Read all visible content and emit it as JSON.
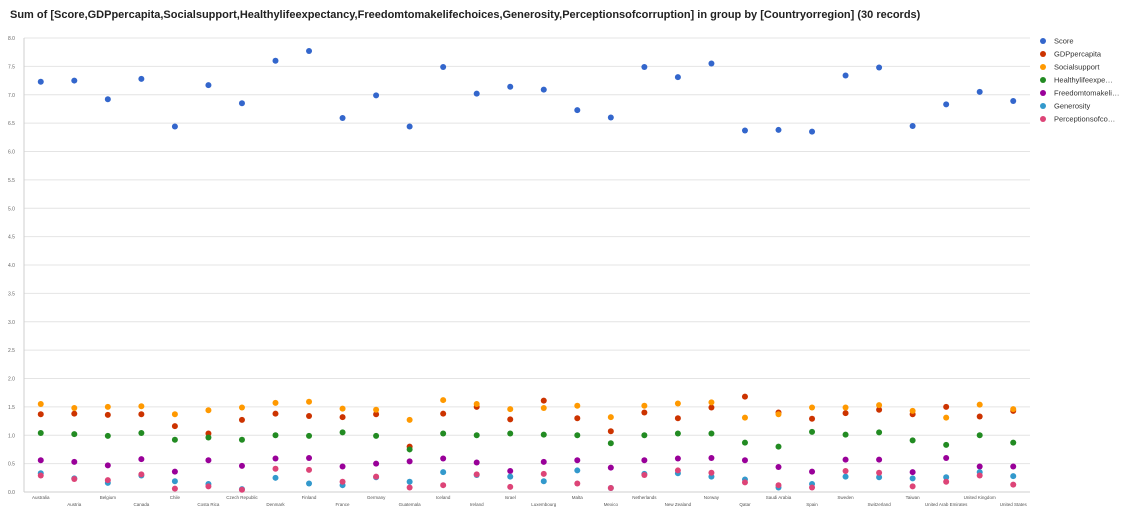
{
  "chart_data": {
    "type": "scatter",
    "title": "Sum of [Score,GDPpercapita,Socialsupport,Healthylifeexpectancy,Freedomtomakelifechoices,Generosity,Perceptionsofcorruption] in group by [Countryorregion] (30 records)",
    "xlabel": "",
    "ylabel": "",
    "ylim": [
      0,
      8
    ],
    "yticks": [
      "0.0",
      "0.5",
      "1.0",
      "1.5",
      "2.0",
      "2.5",
      "3.0",
      "3.5",
      "4.0",
      "4.5",
      "5.0",
      "5.5",
      "6.0",
      "6.5",
      "7.0",
      "7.5",
      "8.0"
    ],
    "grid": true,
    "legend_position": "right",
    "categories": [
      "Australia",
      "Austria",
      "Belgium",
      "Canada",
      "Chile",
      "Costa Rica",
      "Czech Republic",
      "Denmark",
      "Finland",
      "France",
      "Germany",
      "Guatemala",
      "Iceland",
      "Ireland",
      "Israel",
      "Luxembourg",
      "Malta",
      "Mexico",
      "Netherlands",
      "New Zealand",
      "Norway",
      "Qatar",
      "Saudi Arabia",
      "Spain",
      "Sweden",
      "Switzerland",
      "Taiwan",
      "United Arab Emirates",
      "United Kingdom",
      "United States"
    ],
    "series": [
      {
        "name": "Score",
        "color": "#3366cc",
        "values": [
          7.23,
          7.25,
          6.92,
          7.28,
          6.44,
          7.17,
          6.85,
          7.6,
          7.77,
          6.59,
          6.99,
          6.44,
          7.49,
          7.02,
          7.14,
          7.09,
          6.73,
          6.6,
          7.49,
          7.31,
          7.55,
          6.37,
          6.38,
          6.35,
          7.34,
          7.48,
          6.45,
          6.83,
          7.05,
          6.89
        ]
      },
      {
        "name": "GDPpercapita",
        "color": "#cc3300",
        "values": [
          1.37,
          1.38,
          1.36,
          1.37,
          1.16,
          1.03,
          1.27,
          1.38,
          1.34,
          1.32,
          1.37,
          0.8,
          1.38,
          1.5,
          1.28,
          1.61,
          1.3,
          1.07,
          1.4,
          1.3,
          1.49,
          1.68,
          1.4,
          1.29,
          1.39,
          1.45,
          1.37,
          1.5,
          1.33,
          1.43
        ]
      },
      {
        "name": "Socialsupport",
        "color": "#ff9900",
        "values": [
          1.55,
          1.48,
          1.5,
          1.51,
          1.37,
          1.44,
          1.49,
          1.57,
          1.59,
          1.47,
          1.45,
          1.27,
          1.62,
          1.55,
          1.46,
          1.48,
          1.52,
          1.32,
          1.52,
          1.56,
          1.58,
          1.31,
          1.37,
          1.49,
          1.49,
          1.53,
          1.43,
          1.31,
          1.54,
          1.46
        ]
      },
      {
        "name": "Healthylifeexpectancy",
        "color": "#228b22",
        "values": [
          1.04,
          1.02,
          0.99,
          1.04,
          0.92,
          0.96,
          0.92,
          1.0,
          0.99,
          1.05,
          0.99,
          0.75,
          1.03,
          1.0,
          1.03,
          1.01,
          1.0,
          0.86,
          1.0,
          1.03,
          1.03,
          0.87,
          0.8,
          1.06,
          1.01,
          1.05,
          0.91,
          0.83,
          1.0,
          0.87
        ]
      },
      {
        "name": "Freedomtomakelifechoices",
        "color": "#990099",
        "values": [
          0.56,
          0.53,
          0.47,
          0.58,
          0.36,
          0.56,
          0.46,
          0.59,
          0.6,
          0.45,
          0.5,
          0.54,
          0.59,
          0.52,
          0.37,
          0.53,
          0.56,
          0.43,
          0.56,
          0.59,
          0.6,
          0.56,
          0.44,
          0.36,
          0.57,
          0.57,
          0.35,
          0.6,
          0.45,
          0.45
        ]
      },
      {
        "name": "Generosity",
        "color": "#3399cc",
        "values": [
          0.33,
          0.24,
          0.16,
          0.29,
          0.19,
          0.14,
          0.05,
          0.25,
          0.15,
          0.12,
          0.26,
          0.18,
          0.35,
          0.3,
          0.27,
          0.19,
          0.38,
          0.07,
          0.32,
          0.33,
          0.27,
          0.22,
          0.08,
          0.14,
          0.27,
          0.26,
          0.24,
          0.26,
          0.35,
          0.28
        ]
      },
      {
        "name": "Perceptionsofcorruption",
        "color": "#dd4477",
        "values": [
          0.29,
          0.23,
          0.21,
          0.31,
          0.06,
          0.1,
          0.04,
          0.41,
          0.39,
          0.18,
          0.27,
          0.08,
          0.12,
          0.31,
          0.09,
          0.32,
          0.15,
          0.07,
          0.3,
          0.38,
          0.34,
          0.17,
          0.12,
          0.08,
          0.37,
          0.34,
          0.1,
          0.18,
          0.29,
          0.13
        ]
      }
    ]
  }
}
